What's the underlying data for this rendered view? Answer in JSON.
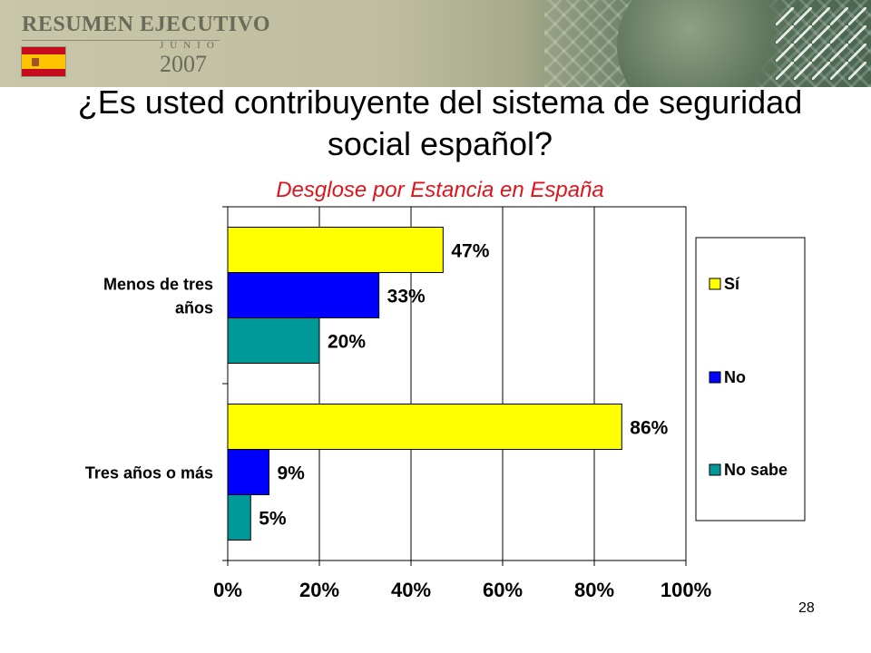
{
  "header": {
    "brand": "RESUMEN EJECUTIVO",
    "month": "JUNIO",
    "year": "2007"
  },
  "title": "¿Es usted contribuyente del sistema de seguridad social español?",
  "subtitle": "Desglose por Estancia en España",
  "page_number": "28",
  "colors": {
    "si": "#ffff00",
    "no": "#0000ff",
    "no_sabe": "#009999",
    "subtitle": "#e0141c"
  },
  "chart_data": {
    "type": "bar",
    "orientation": "horizontal",
    "categories": [
      "Menos de tres años",
      "Tres años o más"
    ],
    "series": [
      {
        "name": "Sí",
        "values": [
          47,
          86
        ],
        "color": "#ffff00"
      },
      {
        "name": "No",
        "values": [
          33,
          9
        ],
        "color": "#0000ff"
      },
      {
        "name": "No sabe",
        "values": [
          20,
          5
        ],
        "color": "#009999"
      }
    ],
    "data_labels": [
      [
        "47%",
        "86%"
      ],
      [
        "33%",
        "9%"
      ],
      [
        "20%",
        "5%"
      ]
    ],
    "xlim": [
      0,
      100
    ],
    "xticks": [
      "0%",
      "20%",
      "40%",
      "60%",
      "80%",
      "100%"
    ],
    "grid": true,
    "legend_position": "right"
  }
}
